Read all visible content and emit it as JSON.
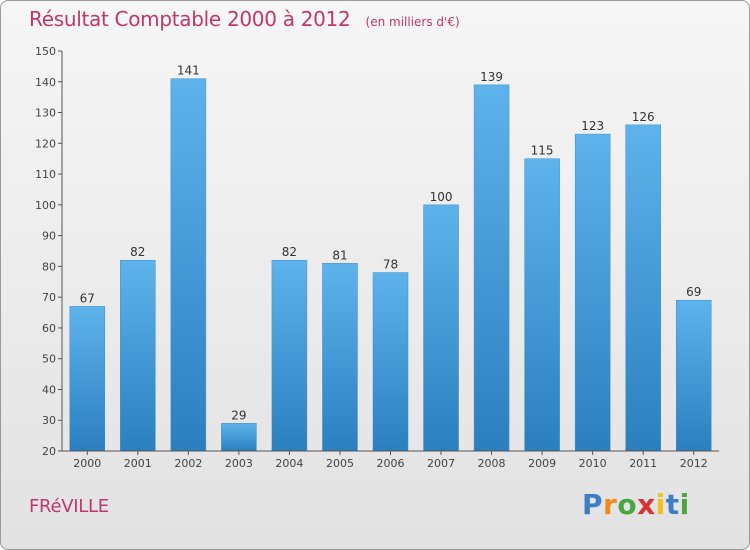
{
  "header": {
    "title": "Résultat Comptable 2000 à 2012",
    "subtitle": "(en milliers d'€)"
  },
  "footer": {
    "commune": "FRéVILLE",
    "brand": "Proxiti",
    "brand_letters": [
      {
        "char": "P",
        "color": "#3d7cc7"
      },
      {
        "char": "r",
        "color": "#f08a1c"
      },
      {
        "char": "o",
        "color": "#4aa63f"
      },
      {
        "char": "x",
        "color": "#d9342b"
      },
      {
        "char": "i",
        "color": "#f2c21a"
      },
      {
        "char": "t",
        "color": "#3d7cc7"
      },
      {
        "char": "i",
        "color": "#4aa63f"
      }
    ]
  },
  "colors": {
    "bar_light": "#5eb3ec",
    "bar_dark": "#2b7fbf",
    "accent": "#c0386b"
  },
  "chart_data": {
    "type": "bar",
    "title": "Résultat Comptable 2000 à 2012",
    "subtitle": "(en milliers d'€)",
    "xlabel": "",
    "ylabel": "",
    "categories": [
      "2000",
      "2001",
      "2002",
      "2003",
      "2004",
      "2005",
      "2006",
      "2007",
      "2008",
      "2009",
      "2010",
      "2011",
      "2012"
    ],
    "values": [
      67,
      82,
      141,
      29,
      82,
      81,
      78,
      100,
      139,
      115,
      123,
      126,
      69
    ],
    "ylim": [
      20,
      150
    ],
    "yticks": [
      20,
      30,
      40,
      50,
      60,
      70,
      80,
      90,
      100,
      110,
      120,
      130,
      140,
      150
    ],
    "grid": false,
    "legend": "none"
  }
}
